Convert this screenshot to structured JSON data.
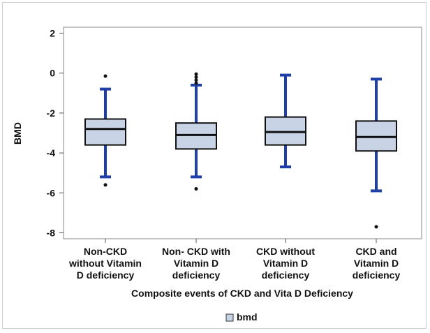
{
  "chart_data": {
    "type": "box",
    "ylabel": "BMD",
    "xlabel": "Composite events of CKD and Vita D Deficiency",
    "ylim": [
      -8.3,
      2.3
    ],
    "yticks": [
      2,
      0,
      -2,
      -4,
      -6,
      -8
    ],
    "ytick_labels": [
      "2",
      "0",
      "-2",
      "-4",
      "-6",
      "-8"
    ],
    "grid": false,
    "legend_position": "bottom-center",
    "colors": {
      "box_fill": "#c8d4e6",
      "whisker": "#1f3fa8",
      "median": "#111111",
      "outlier": "#111111",
      "axis": "#555555"
    },
    "categories": [
      [
        "Non-CKD",
        "without Vitamin",
        "D deficiency"
      ],
      [
        "Non- CKD with",
        "Vitamin D",
        "deficiency"
      ],
      [
        "CKD without",
        "Vitamin D",
        "deficiency"
      ],
      [
        "CKD and",
        "Vitamin D",
        "deficiency"
      ]
    ],
    "series": [
      {
        "name": "bmd",
        "boxes": [
          {
            "q1": -3.6,
            "median": -2.8,
            "q3": -2.3,
            "whisker_low": -5.2,
            "whisker_high": -0.8,
            "outliers": [
              -0.15,
              -5.6
            ]
          },
          {
            "q1": -3.8,
            "median": -3.1,
            "q3": -2.5,
            "whisker_low": -5.2,
            "whisker_high": -0.6,
            "outliers": [
              -0.05,
              -0.2,
              -0.35,
              -0.5,
              -5.8
            ]
          },
          {
            "q1": -3.6,
            "median": -2.95,
            "q3": -2.2,
            "whisker_low": -4.7,
            "whisker_high": -0.1,
            "outliers": []
          },
          {
            "q1": -3.9,
            "median": -3.2,
            "q3": -2.4,
            "whisker_low": -5.9,
            "whisker_high": -0.3,
            "outliers": [
              -7.7
            ]
          }
        ]
      }
    ]
  }
}
